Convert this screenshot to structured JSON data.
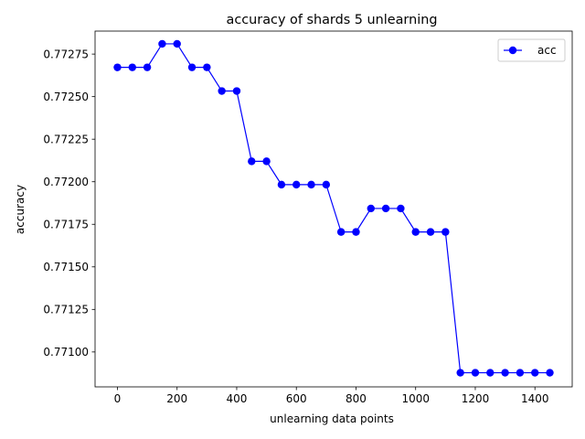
{
  "chart_data": {
    "type": "line",
    "title": "accuracy of shards 5 unlearning",
    "xlabel": "unlearning data points",
    "ylabel": "accuracy",
    "xlim": [
      -75,
      1525
    ],
    "ylim": [
      0.770795,
      0.772885
    ],
    "x_ticks": [
      0,
      200,
      400,
      600,
      800,
      1000,
      1200,
      1400
    ],
    "y_ticks": [
      0.771,
      0.77125,
      0.7715,
      0.77175,
      0.772,
      0.77225,
      0.7725,
      0.77275
    ],
    "grid": false,
    "legend_position": "top-right",
    "series": [
      {
        "name": "acc",
        "color": "#0000ff",
        "marker": "circle",
        "x": [
          0,
          50,
          100,
          150,
          200,
          250,
          300,
          350,
          400,
          450,
          500,
          550,
          600,
          650,
          700,
          750,
          800,
          850,
          900,
          950,
          1000,
          1050,
          1100,
          1150,
          1200,
          1250,
          1300,
          1350,
          1400,
          1450
        ],
        "y": [
          0.772672,
          0.772672,
          0.772672,
          0.77281,
          0.77281,
          0.772672,
          0.772672,
          0.772533,
          0.772533,
          0.77212,
          0.77212,
          0.771983,
          0.771983,
          0.771983,
          0.771983,
          0.771705,
          0.771705,
          0.771843,
          0.771843,
          0.771843,
          0.771705,
          0.771705,
          0.771705,
          0.770878,
          0.770878,
          0.770878,
          0.770878,
          0.770878,
          0.770878,
          0.770878
        ]
      }
    ]
  }
}
